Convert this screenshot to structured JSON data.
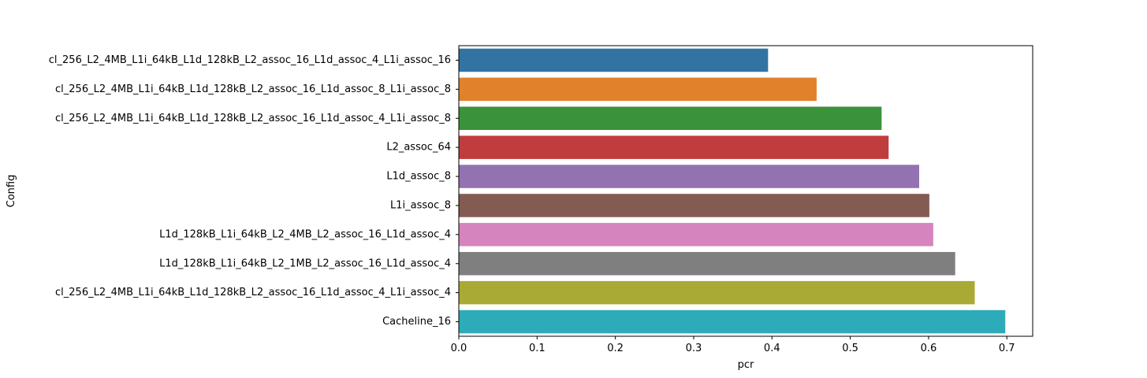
{
  "chart_data": {
    "type": "bar",
    "orientation": "horizontal",
    "title": "",
    "xlabel": "pcr",
    "ylabel": "Config",
    "xlim": [
      0,
      0.733
    ],
    "xticks": [
      0.0,
      0.1,
      0.2,
      0.3,
      0.4,
      0.5,
      0.6,
      0.7
    ],
    "xtick_labels": [
      "0.0",
      "0.1",
      "0.2",
      "0.3",
      "0.4",
      "0.5",
      "0.6",
      "0.7"
    ],
    "grid": false,
    "legend": "none",
    "categories": [
      "cl_256_L2_4MB_L1i_64kB_L1d_128kB_L2_assoc_16_L1d_assoc_4_L1i_assoc_16",
      "cl_256_L2_4MB_L1i_64kB_L1d_128kB_L2_assoc_16_L1d_assoc_8_L1i_assoc_8",
      "cl_256_L2_4MB_L1i_64kB_L1d_128kB_L2_assoc_16_L1d_assoc_4_L1i_assoc_8",
      "L2_assoc_64",
      "L1d_assoc_8",
      "L1i_assoc_8",
      "L1d_128kB_L1i_64kB_L2_4MB_L2_assoc_16_L1d_assoc_4",
      "L1d_128kB_L1i_64kB_L2_1MB_L2_assoc_16_L1d_assoc_4",
      "cl_256_L2_4MB_L1i_64kB_L1d_128kB_L2_assoc_16_L1d_assoc_4_L1i_assoc_4",
      "Cacheline_16"
    ],
    "values": [
      0.395,
      0.457,
      0.54,
      0.549,
      0.588,
      0.601,
      0.606,
      0.634,
      0.659,
      0.698
    ],
    "colors": [
      "#3274a1",
      "#e1812c",
      "#3a923a",
      "#c03d3e",
      "#9372b2",
      "#845b53",
      "#d684bd",
      "#7f7f7f",
      "#a9aa35",
      "#2eabb8"
    ]
  }
}
